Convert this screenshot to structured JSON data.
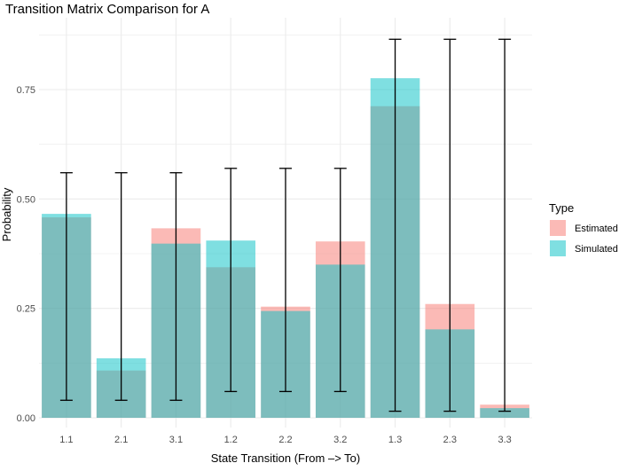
{
  "chart_data": {
    "type": "bar",
    "title": "Transition Matrix Comparison for A",
    "xlabel": "State Transition (From –> To)",
    "ylabel": "Probability",
    "categories": [
      "1.1",
      "2.1",
      "3.1",
      "1.2",
      "2.2",
      "3.2",
      "1.3",
      "2.3",
      "3.3"
    ],
    "ylim": [
      0,
      0.87
    ],
    "y_ticks": [
      0.0,
      0.25,
      0.5,
      0.75
    ],
    "y_tick_labels": [
      "0.00",
      "0.25",
      "0.50",
      "0.75"
    ],
    "grid": true,
    "bar_mode": "overlay",
    "series": [
      {
        "name": "Estimated",
        "color": "#F8766D",
        "values": [
          0.458,
          0.108,
          0.433,
          0.344,
          0.254,
          0.403,
          0.712,
          0.26,
          0.03
        ]
      },
      {
        "name": "Simulated",
        "color": "#00BFC4",
        "values": [
          0.466,
          0.136,
          0.398,
          0.405,
          0.244,
          0.35,
          0.776,
          0.202,
          0.022
        ]
      }
    ],
    "error_bars": {
      "lower": [
        0.04,
        0.04,
        0.04,
        0.06,
        0.06,
        0.06,
        0.015,
        0.015,
        0.015
      ],
      "upper": [
        0.56,
        0.56,
        0.56,
        0.57,
        0.57,
        0.57,
        0.865,
        0.865,
        0.865
      ]
    },
    "legend": {
      "title": "Type",
      "position": "right",
      "items": [
        "Estimated",
        "Simulated"
      ]
    }
  }
}
